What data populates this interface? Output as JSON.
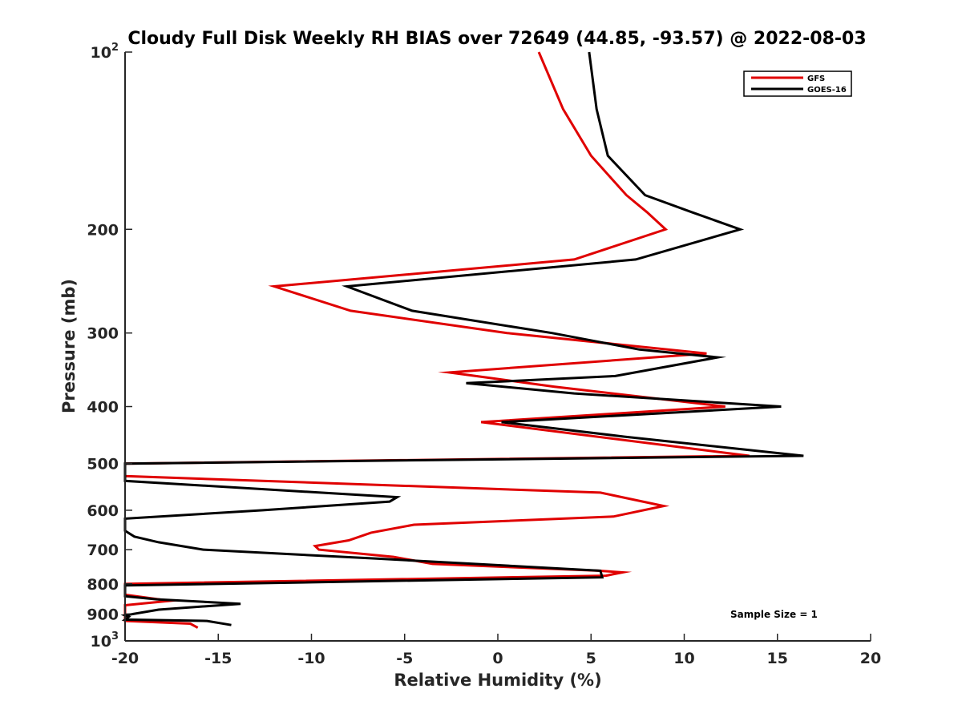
{
  "chart_data": {
    "type": "line",
    "title": "Cloudy Full Disk Weekly RH BIAS over 72649 (44.85, -93.57) @ 2022-08-03",
    "xlabel": "Relative Humidity (%)",
    "ylabel": "Pressure (mb)",
    "xlim": [
      -20,
      20
    ],
    "ylim": [
      100,
      1000
    ],
    "yscale": "log",
    "y_reversed": true,
    "x_ticks": [
      -20,
      -15,
      -10,
      -5,
      0,
      5,
      10,
      15,
      20
    ],
    "x_tick_labels": [
      "-20",
      "-15",
      "-10",
      "-5",
      "0",
      "5",
      "10",
      "15",
      "20"
    ],
    "y_ticks": [
      100,
      200,
      300,
      400,
      500,
      600,
      700,
      800,
      900,
      1000
    ],
    "y_tick_labels": [
      {
        "base": "10",
        "exp": "2"
      },
      {
        "base": "200"
      },
      {
        "base": "300"
      },
      {
        "base": "400"
      },
      {
        "base": "500"
      },
      {
        "base": "600"
      },
      {
        "base": "700"
      },
      {
        "base": "800"
      },
      {
        "base": "900"
      },
      {
        "base": "10",
        "exp": "3"
      }
    ],
    "grid": false,
    "legend_position": "top-right",
    "annotation": "Sample Size = 1",
    "series": [
      {
        "name": "GFS",
        "color": "#e00000",
        "points": [
          [
            2.2,
            100
          ],
          [
            3.5,
            125
          ],
          [
            5.0,
            150
          ],
          [
            6.9,
            175
          ],
          [
            8.0,
            187
          ],
          [
            9.0,
            200
          ],
          [
            4.1,
            225
          ],
          [
            -12.0,
            250
          ],
          [
            -7.9,
            275
          ],
          [
            0.5,
            300
          ],
          [
            11.2,
            325
          ],
          [
            -2.6,
            350
          ],
          [
            3.0,
            370
          ],
          [
            12.2,
            400
          ],
          [
            -0.9,
            425
          ],
          [
            13.5,
            485
          ],
          [
            -20,
            500
          ],
          [
            -20,
            525
          ],
          [
            5.5,
            560
          ],
          [
            8.9,
            590
          ],
          [
            6.2,
            615
          ],
          [
            -4.5,
            635
          ],
          [
            -6.8,
            655
          ],
          [
            -8.0,
            675
          ],
          [
            -9.8,
            690
          ],
          [
            -9.6,
            700
          ],
          [
            -5.6,
            720
          ],
          [
            -3.5,
            740
          ],
          [
            5.4,
            760
          ],
          [
            6.7,
            765
          ],
          [
            5.8,
            775
          ],
          [
            -20,
            800
          ],
          [
            -20,
            835
          ],
          [
            -17.6,
            855
          ],
          [
            -20,
            870
          ],
          [
            -20,
            925
          ],
          [
            -16.5,
            935
          ],
          [
            -16.1,
            950
          ]
        ]
      },
      {
        "name": "GOES-16",
        "color": "#000000",
        "points": [
          [
            4.9,
            100
          ],
          [
            5.3,
            125
          ],
          [
            5.9,
            150
          ],
          [
            7.9,
            175
          ],
          [
            10.4,
            187
          ],
          [
            13.0,
            200
          ],
          [
            7.4,
            225
          ],
          [
            -8.1,
            250
          ],
          [
            -4.6,
            275
          ],
          [
            2.9,
            300
          ],
          [
            7.6,
            320
          ],
          [
            11.8,
            330
          ],
          [
            6.3,
            355
          ],
          [
            -1.7,
            365
          ],
          [
            4.1,
            380
          ],
          [
            15.2,
            400
          ],
          [
            0.2,
            425
          ],
          [
            6.8,
            450
          ],
          [
            16.4,
            485
          ],
          [
            -20,
            500
          ],
          [
            -20,
            535
          ],
          [
            -5.4,
            570
          ],
          [
            -5.8,
            580
          ],
          [
            -12.6,
            600
          ],
          [
            -20,
            620
          ],
          [
            -20,
            650
          ],
          [
            -19.5,
            665
          ],
          [
            -18.2,
            680
          ],
          [
            -15.8,
            700
          ],
          [
            -6.5,
            725
          ],
          [
            5.5,
            760
          ],
          [
            5.6,
            780
          ],
          [
            -20,
            805
          ],
          [
            -20,
            840
          ],
          [
            -18.3,
            850
          ],
          [
            -13.8,
            865
          ],
          [
            -18.2,
            885
          ],
          [
            -20,
            905
          ],
          [
            -19.8,
            910
          ],
          [
            -20,
            920
          ],
          [
            -15.6,
            925
          ],
          [
            -14.3,
            940
          ]
        ]
      }
    ]
  }
}
